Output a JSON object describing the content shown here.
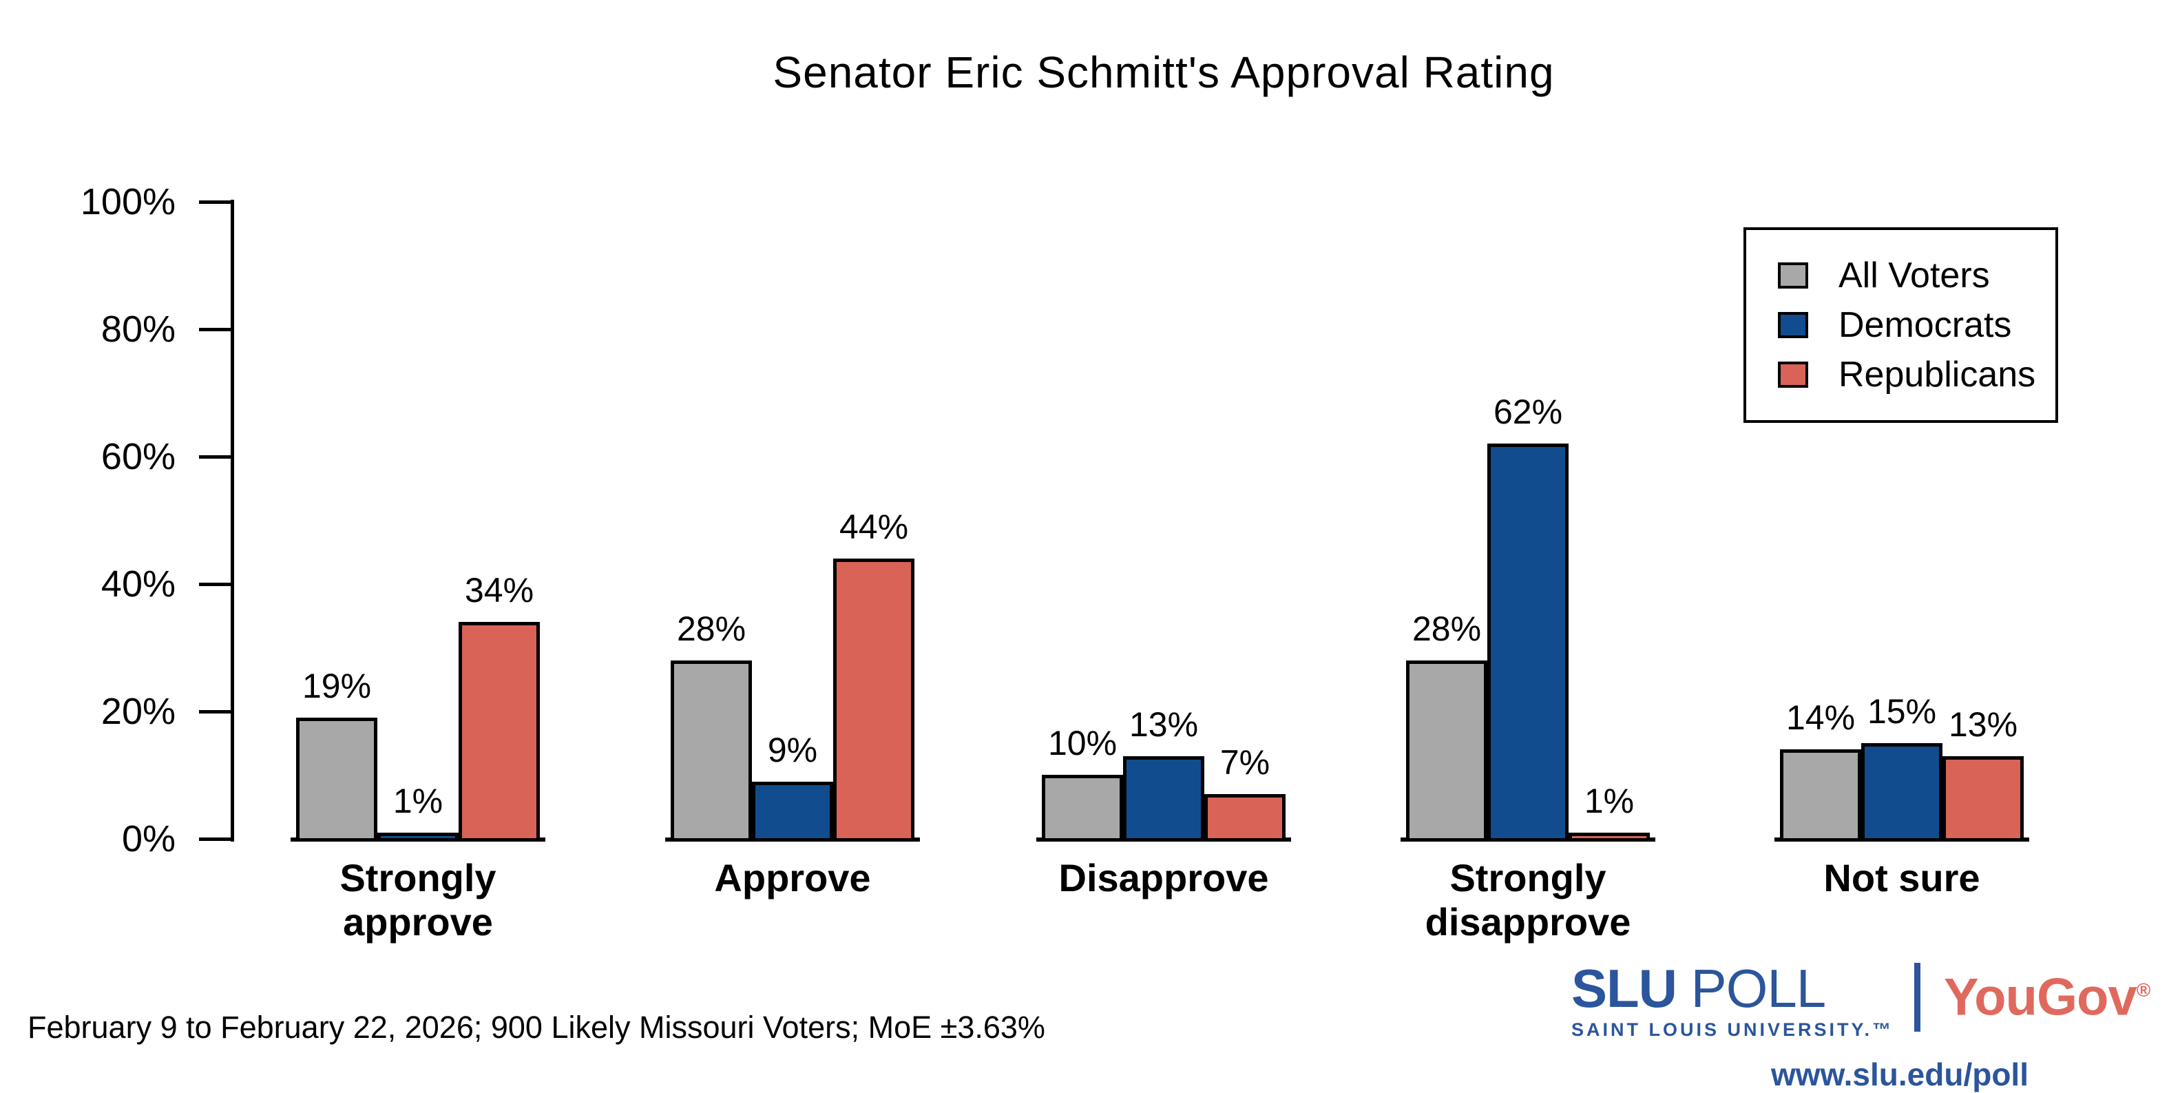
{
  "title": "Senator Eric Schmitt's Approval Rating",
  "chart_data": {
    "type": "bar",
    "title": "Senator Eric Schmitt's Approval Rating",
    "categories": [
      "Strongly approve",
      "Approve",
      "Disapprove",
      "Strongly disapprove",
      "Not sure"
    ],
    "series": [
      {
        "name": "All Voters",
        "color": "#a8a8a8",
        "values": [
          19,
          28,
          10,
          28,
          14
        ]
      },
      {
        "name": "Democrats",
        "color": "#114d8e",
        "values": [
          1,
          9,
          13,
          62,
          15
        ]
      },
      {
        "name": "Republicans",
        "color": "#d96357",
        "values": [
          34,
          44,
          7,
          1,
          13
        ]
      }
    ],
    "value_label_suffix": "%",
    "y_ticks": [
      0,
      20,
      40,
      60,
      80,
      100
    ],
    "y_tick_labels": [
      "0%",
      "20%",
      "40%",
      "60%",
      "80%",
      "100%"
    ],
    "ylim": [
      0,
      100
    ],
    "xlabel": "",
    "ylabel": "",
    "grid": false,
    "legend_position": "top-right"
  },
  "footer": {
    "note": "February 9 to February 22, 2026; 900 Likely Missouri Voters; MoE ±3.63%"
  },
  "branding": {
    "slu_name": "SLU",
    "slu_product": "POLL",
    "slu_subtitle": "SAINT LOUIS UNIVERSITY.™",
    "partner": "YouGov",
    "partner_mark": "®",
    "url": "www.slu.edu/poll",
    "slu_blue": "#2b559c",
    "yougov_red": "#e0695e"
  }
}
